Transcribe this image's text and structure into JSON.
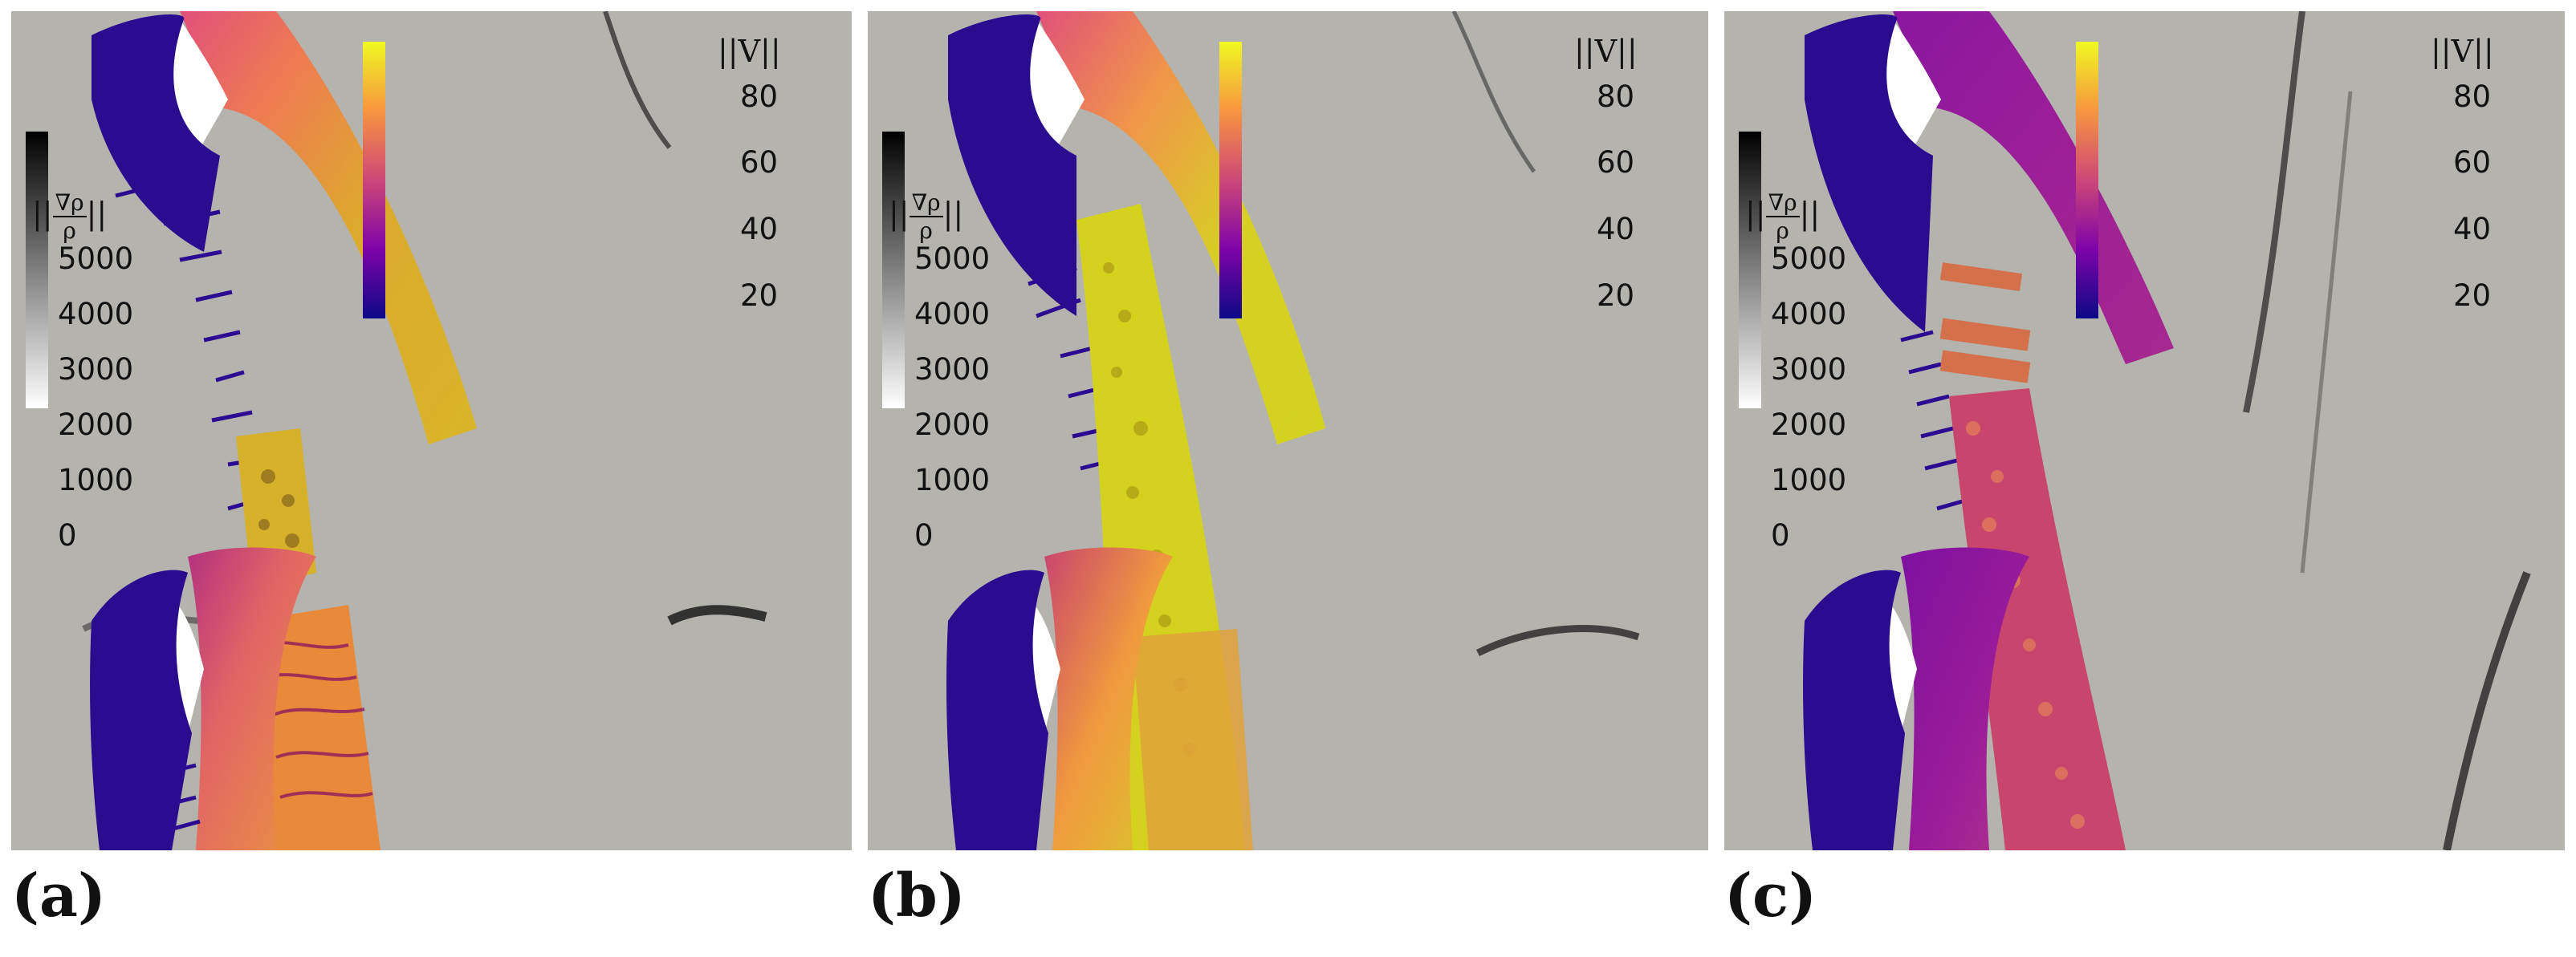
{
  "panels": [
    {
      "label": "(a)",
      "gradient_legend": {
        "title_prefix": "||",
        "num": "∇ρ",
        "den": "ρ",
        "title_suffix": "||",
        "ticks": [
          "5000",
          "4000",
          "3000",
          "2000",
          "1000",
          "0"
        ]
      },
      "velocity_legend": {
        "title": "||V||",
        "ticks": [
          "80",
          "60",
          "40",
          "20"
        ]
      }
    },
    {
      "label": "(b)",
      "gradient_legend": {
        "title_prefix": "||",
        "num": "∇ρ",
        "den": "ρ",
        "title_suffix": "||",
        "ticks": [
          "5000",
          "4000",
          "3000",
          "2000",
          "1000",
          "0"
        ]
      },
      "velocity_legend": {
        "title": "||V||",
        "ticks": [
          "80",
          "60",
          "40",
          "20"
        ]
      }
    },
    {
      "label": "(c)",
      "gradient_legend": {
        "title_prefix": "||",
        "num": "∇ρ",
        "den": "ρ",
        "title_suffix": "||",
        "ticks": [
          "5000",
          "4000",
          "3000",
          "2000",
          "1000",
          "0"
        ]
      },
      "velocity_legend": {
        "title": "||V||",
        "ticks": [
          "80",
          "60",
          "40",
          "20"
        ]
      }
    }
  ],
  "colors": {
    "background": "#b4b3ae",
    "plasma_low": "#1d068f",
    "plasma_mid": "#c43a7b",
    "plasma_high": "#f0f921",
    "wake_ribbon_a": "#d8b12a",
    "wake_ribbon_b": "#d4d21e",
    "wake_ribbon_c": "#c8456e"
  }
}
